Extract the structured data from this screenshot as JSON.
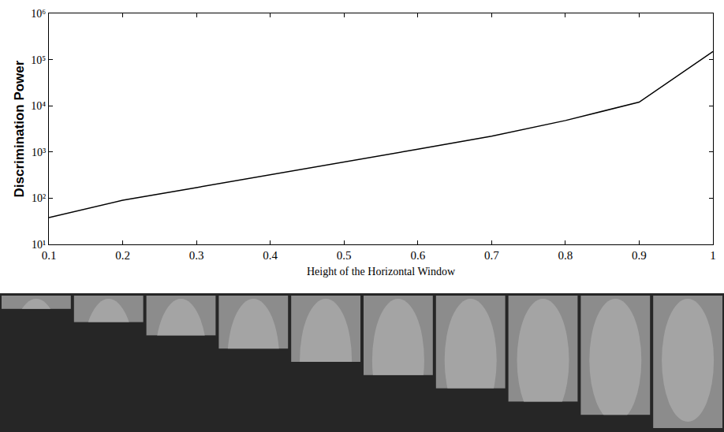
{
  "chart_data": {
    "type": "line",
    "x_label": "Height of the Horizontal Window",
    "y_label": "Discrimination Power",
    "x": [
      0.1,
      0.2,
      0.3,
      0.4,
      0.5,
      0.6,
      0.7,
      0.8,
      0.9,
      1
    ],
    "values": [
      38,
      90,
      170,
      320,
      600,
      1150,
      2200,
      4800,
      12000,
      150000
    ],
    "color": "#000000",
    "xlim": [
      0.1,
      1
    ],
    "ylim": [
      10,
      1000000
    ],
    "xticks": [
      0.1,
      0.2,
      0.3,
      0.4,
      0.5,
      0.6,
      0.7,
      0.8,
      0.9,
      1
    ],
    "yticks": [
      {
        "value": 10,
        "label": "10¹"
      },
      {
        "value": 100,
        "label": "10²"
      },
      {
        "value": 1000,
        "label": "10³"
      },
      {
        "value": 10000,
        "label": "10⁴"
      },
      {
        "value": 100000,
        "label": "10⁵"
      },
      {
        "value": 1000000,
        "label": "10⁶"
      }
    ],
    "log": "y",
    "grid": false
  }
}
